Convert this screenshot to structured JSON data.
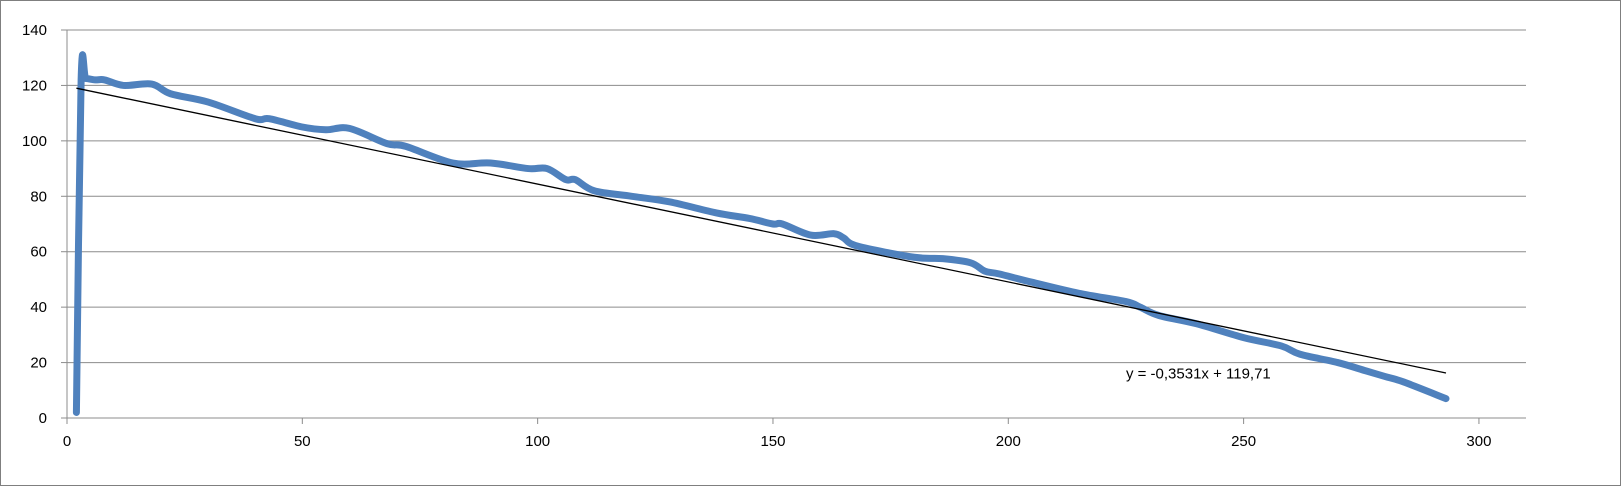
{
  "chart_data": {
    "type": "scatter",
    "title": "",
    "xlabel": "",
    "ylabel": "",
    "xlim": [
      0,
      310
    ],
    "ylim": [
      0,
      140
    ],
    "x_ticks": [
      0,
      50,
      100,
      150,
      200,
      250,
      300
    ],
    "y_ticks": [
      0,
      20,
      40,
      60,
      80,
      100,
      120,
      140
    ],
    "grid": "horizontal",
    "legend": "none",
    "series": [
      {
        "color": "#4f81bd",
        "line_style": "smooth line, no markers",
        "points": [
          [
            2,
            2
          ],
          [
            3,
            122
          ],
          [
            4,
            122.5
          ],
          [
            6,
            122
          ],
          [
            8,
            122
          ],
          [
            12,
            120
          ],
          [
            18,
            120.5
          ],
          [
            22,
            117
          ],
          [
            30,
            114
          ],
          [
            40,
            108
          ],
          [
            43,
            108
          ],
          [
            50,
            105
          ],
          [
            55,
            104
          ],
          [
            60,
            104.5
          ],
          [
            68,
            99
          ],
          [
            72,
            98
          ],
          [
            82,
            92
          ],
          [
            90,
            92
          ],
          [
            98,
            90
          ],
          [
            102,
            90
          ],
          [
            106,
            86
          ],
          [
            108,
            86
          ],
          [
            112,
            82
          ],
          [
            120,
            80
          ],
          [
            128,
            78
          ],
          [
            138,
            74
          ],
          [
            145,
            72
          ],
          [
            150,
            70
          ],
          [
            152,
            70
          ],
          [
            158,
            66
          ],
          [
            163,
            66.5
          ],
          [
            165,
            65
          ],
          [
            168,
            62
          ],
          [
            180,
            58
          ],
          [
            186,
            57.5
          ],
          [
            192,
            56
          ],
          [
            195,
            53
          ],
          [
            198,
            52
          ],
          [
            205,
            49
          ],
          [
            215,
            45
          ],
          [
            225,
            42
          ],
          [
            228,
            40
          ],
          [
            232,
            37
          ],
          [
            240,
            34
          ],
          [
            250,
            29
          ],
          [
            258,
            26
          ],
          [
            262,
            23
          ],
          [
            270,
            20
          ],
          [
            276,
            17
          ],
          [
            280,
            15
          ],
          [
            284,
            13
          ],
          [
            293,
            7
          ]
        ]
      }
    ],
    "trendline": {
      "color": "#000000",
      "slope": -0.3531,
      "intercept": 119.71,
      "x_range": [
        2,
        293
      ],
      "equation_label": "y = -0,3531x + 119,71",
      "label_anchor": {
        "x": 225,
        "y": 15
      }
    }
  }
}
